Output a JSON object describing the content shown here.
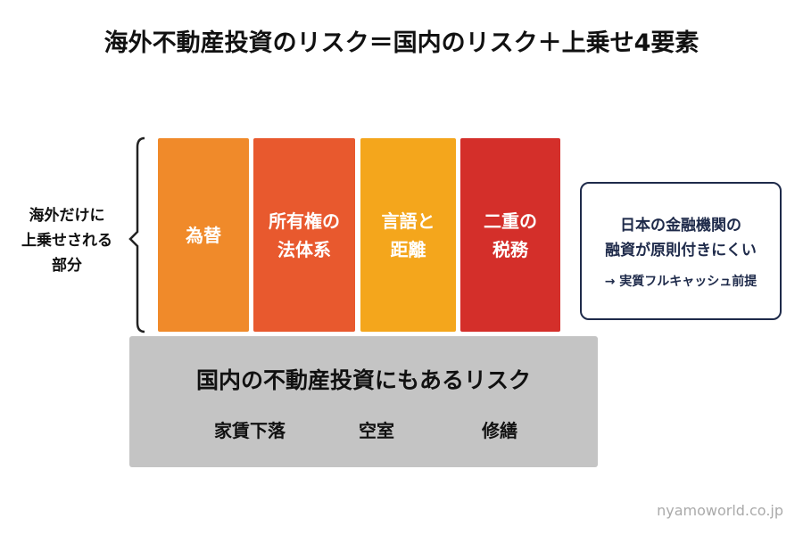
{
  "header": {
    "title": "海外不動産投資のリスク＝国内のリスク＋上乗せ4要素"
  },
  "bracket": {
    "lines": [
      "海外だけに",
      "上乗せされる",
      "部分"
    ]
  },
  "blocks": [
    {
      "lines": [
        "為替"
      ]
    },
    {
      "lines": [
        "所有権の",
        "法体系"
      ]
    },
    {
      "lines": [
        "言語と",
        "距離"
      ]
    },
    {
      "lines": [
        "二重の",
        "税務"
      ]
    }
  ],
  "base": {
    "title": "国内の不動産投資にもあるリスク",
    "items": [
      "家賃下落",
      "空室",
      "修繕"
    ]
  },
  "note": {
    "lines": [
      "日本の金融機関の",
      "融資が原則付きにくい"
    ],
    "sub": "→ 実質フルキャッシュ前提"
  },
  "watermark": "nyamoworld.co.jp"
}
